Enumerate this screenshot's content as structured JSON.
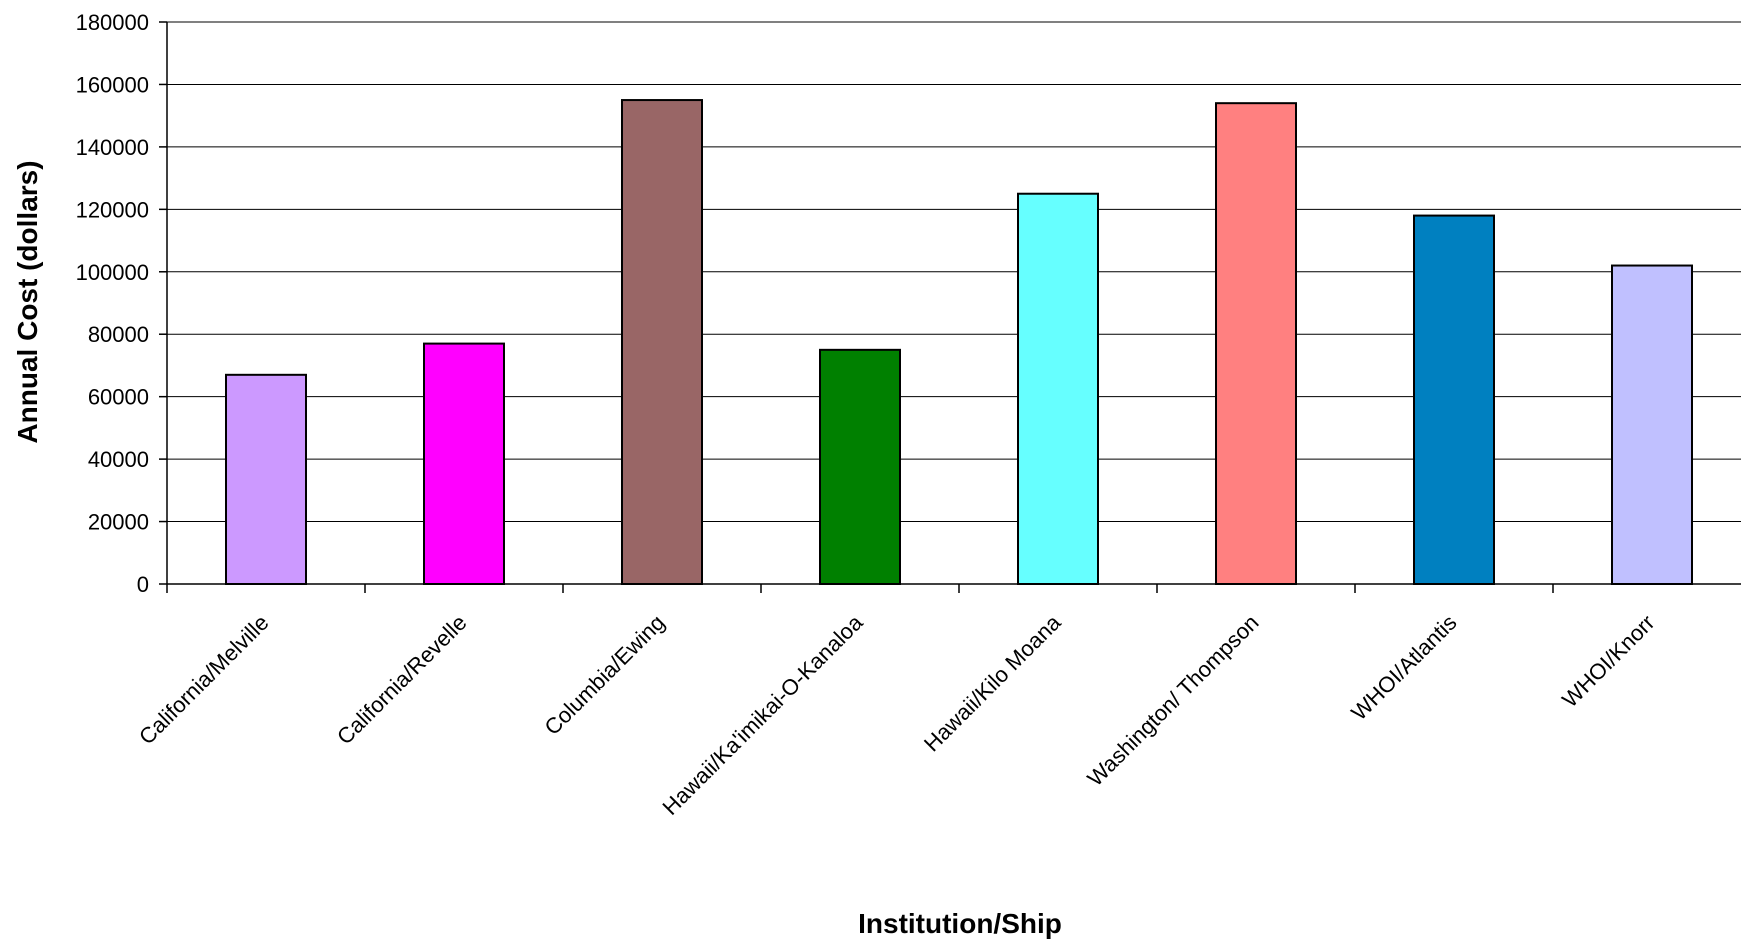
{
  "chart_data": {
    "type": "bar",
    "title": "",
    "xlabel": "Institution/Ship",
    "ylabel": "Annual Cost (dollars)",
    "ylim": [
      0,
      180000
    ],
    "yticks": [
      0,
      20000,
      40000,
      60000,
      80000,
      100000,
      120000,
      140000,
      160000,
      180000
    ],
    "ytick_labels": [
      "0",
      "20000",
      "40000",
      "60000",
      "80000",
      "100000",
      "120000",
      "140000",
      "160000",
      "180000"
    ],
    "grid": true,
    "legend": "none",
    "categories": [
      "California/Melville",
      "California/Revelle",
      "Columbia/Ewing",
      "Hawaii/Ka'imikai-O-Kanaloa",
      "Hawaii/Kilo Moana",
      "Washington/ Thompson",
      "WHOI/Atlantis",
      "WHOI/Knorr"
    ],
    "values": [
      67000,
      77000,
      155000,
      75000,
      125000,
      154000,
      118000,
      102000
    ],
    "colors": [
      "#cc99ff",
      "#ff00ff",
      "#996666",
      "#008000",
      "#66ffff",
      "#ff8080",
      "#0080c0",
      "#c0c0ff"
    ]
  }
}
